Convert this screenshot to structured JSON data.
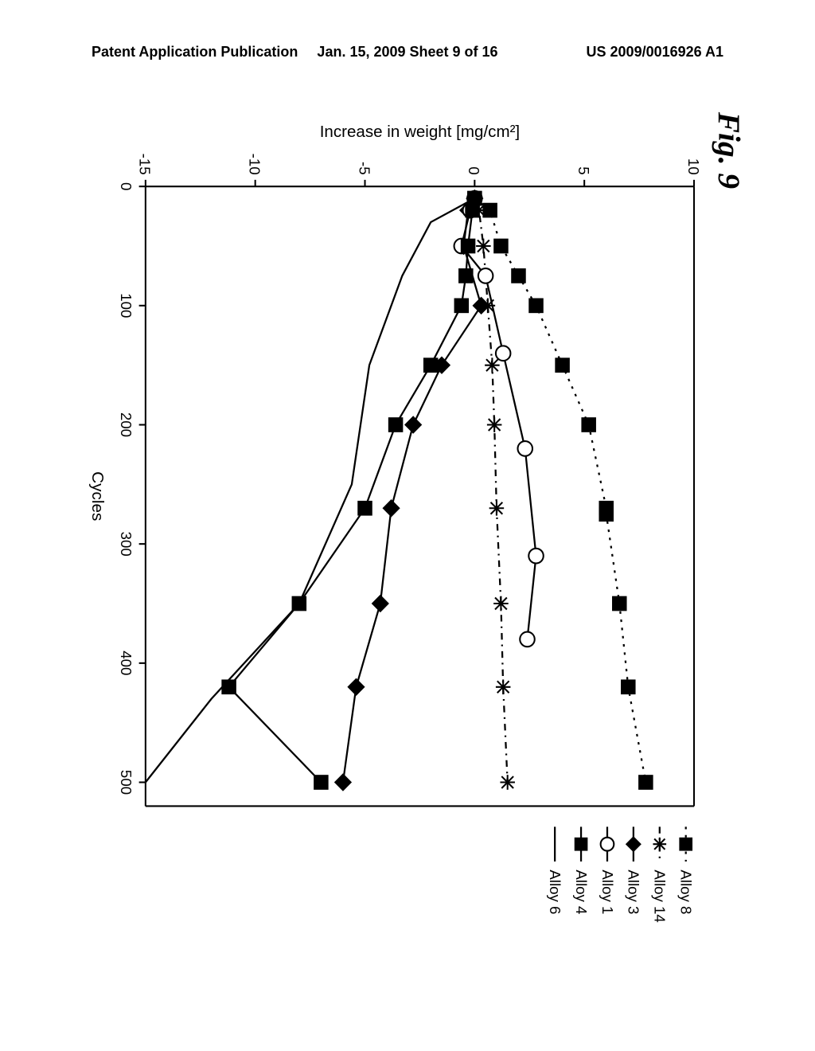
{
  "header": {
    "left": "Patent Application Publication",
    "center": "Jan. 15, 2009  Sheet 9 of 16",
    "right": "US 2009/0016926 A1"
  },
  "figure_label": "Fig. 9",
  "page_number": "",
  "chart": {
    "type": "line",
    "title": "",
    "xlabel": "Cycles",
    "ylabel": "Increase in weight [mg/cm²]",
    "xlim": [
      0,
      520
    ],
    "ylim": [
      -15,
      10
    ],
    "xticks": [
      0,
      100,
      200,
      300,
      400,
      500
    ],
    "yticks": [
      -15,
      -10,
      -5,
      0,
      5,
      10
    ],
    "axis_fontsize": 20,
    "tick_fontsize": 18,
    "background_color": "#ffffff",
    "axis_color": "#000000",
    "line_width": 2.2,
    "marker_size": 9,
    "series": [
      {
        "name": "Alloy 8",
        "marker": "square-filled",
        "dash": "dotted",
        "color": "#000000",
        "x": [
          10,
          20,
          50,
          75,
          100,
          150,
          200,
          270,
          275,
          350,
          420,
          500
        ],
        "y": [
          0,
          0.7,
          1.2,
          2.0,
          2.8,
          4.0,
          5.2,
          6.0,
          6.0,
          6.6,
          7.0,
          7.8
        ]
      },
      {
        "name": "Alloy 14",
        "marker": "asterisk",
        "dash": "dash-dot",
        "color": "#000000",
        "x": [
          10,
          20,
          50,
          100,
          150,
          200,
          270,
          350,
          420,
          500
        ],
        "y": [
          0,
          0.2,
          0.4,
          0.6,
          0.8,
          0.9,
          1.0,
          1.2,
          1.3,
          1.5
        ]
      },
      {
        "name": "Alloy 3",
        "marker": "diamond-filled",
        "dash": "solid",
        "color": "#000000",
        "x": [
          10,
          20,
          50,
          100,
          150,
          200,
          270,
          350,
          420,
          500
        ],
        "y": [
          0,
          -0.3,
          -0.5,
          0.3,
          -1.5,
          -2.8,
          -3.8,
          -4.3,
          -5.4,
          -6.0
        ]
      },
      {
        "name": "Alloy 1",
        "marker": "circle-open",
        "dash": "solid",
        "color": "#000000",
        "x": [
          10,
          20,
          50,
          75,
          140,
          220,
          310,
          380
        ],
        "y": [
          0,
          -0.2,
          -0.6,
          0.5,
          1.3,
          2.3,
          2.8,
          2.4
        ]
      },
      {
        "name": "Alloy 4",
        "marker": "square-filled",
        "dash": "solid",
        "color": "#000000",
        "x": [
          10,
          20,
          50,
          75,
          100,
          150,
          200,
          270,
          350,
          420,
          500
        ],
        "y": [
          0,
          -0.1,
          -0.3,
          -0.4,
          -0.6,
          -2.0,
          -3.6,
          -5.0,
          -8.0,
          -11.2,
          -7.0
        ]
      },
      {
        "name": "Alloy 6",
        "marker": "none",
        "dash": "solid",
        "color": "#000000",
        "x": [
          10,
          30,
          75,
          150,
          250,
          350,
          430,
          500
        ],
        "y": [
          0,
          -2.0,
          -3.3,
          -4.8,
          -5.6,
          -8.0,
          -12.0,
          -15.0
        ]
      }
    ],
    "legend": {
      "position": "right",
      "fontsize": 18,
      "items": [
        "Alloy 8",
        "Alloy 14",
        "Alloy 3",
        "Alloy 1",
        "Alloy 4",
        "Alloy 6"
      ]
    },
    "rotation_deg": 90
  }
}
